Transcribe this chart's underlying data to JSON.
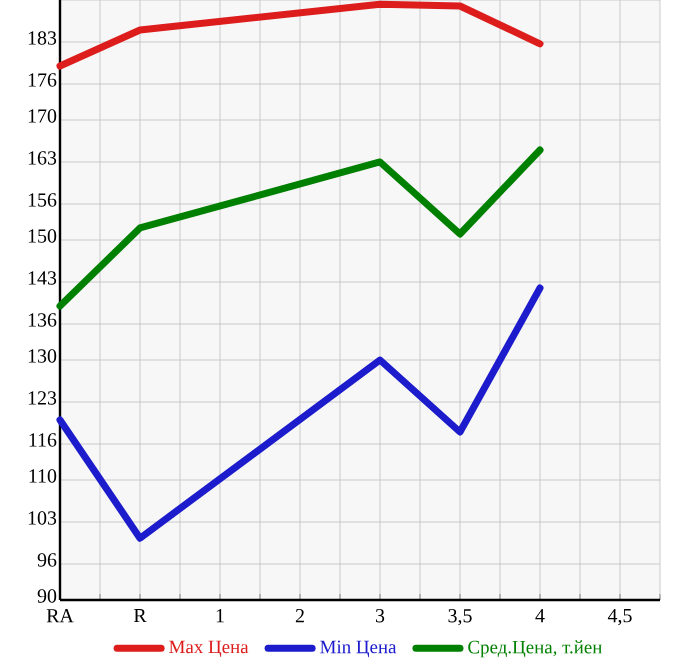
{
  "chart_data": {
    "type": "line",
    "categories": [
      "RA",
      "R",
      "1",
      "2",
      "3",
      "3,5",
      "4",
      "4,5"
    ],
    "series": [
      {
        "name": "Max Цена",
        "color": "#dd1c1c",
        "values": [
          179,
          185,
          null,
          null,
          189.3,
          189,
          182.7,
          null
        ]
      },
      {
        "name": "Min Цена",
        "color": "#1c1ccc",
        "values": [
          120,
          100.3,
          null,
          null,
          130,
          118,
          142,
          null
        ]
      },
      {
        "name": "Сред.Цена, т.йен",
        "color": "#008000",
        "values": [
          139,
          152,
          null,
          null,
          163,
          151,
          165,
          null
        ]
      }
    ],
    "ylim": [
      90,
      190
    ],
    "yticks": [
      90,
      96,
      103,
      110,
      116,
      123,
      130,
      136,
      143,
      150,
      156,
      163,
      170,
      176,
      183,
      {
        "value": 190,
        "label": null
      }
    ],
    "grid": true,
    "legend": "bottom",
    "marker": "none",
    "line_style": "solid"
  }
}
